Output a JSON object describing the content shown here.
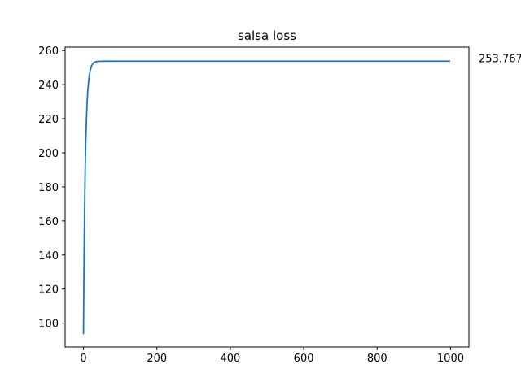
{
  "chart_data": {
    "type": "line",
    "title": "salsa loss",
    "xlabel": "",
    "ylabel": "",
    "xlim": [
      -50,
      1050
    ],
    "ylim": [
      86,
      262
    ],
    "xticks": [
      0,
      200,
      400,
      600,
      800,
      1000
    ],
    "yticks": [
      100,
      120,
      140,
      160,
      180,
      200,
      220,
      240,
      260
    ],
    "grid": false,
    "legend": "none",
    "series": [
      {
        "color": "#1f77b4",
        "x": [
          0,
          1,
          2,
          3,
          4,
          5,
          6,
          8,
          10,
          12,
          15,
          18,
          22,
          26,
          30,
          35,
          40,
          50,
          60,
          80,
          100,
          150,
          200,
          300,
          400,
          500,
          600,
          700,
          800,
          900,
          999
        ],
        "y": [
          93.5,
          122,
          146,
          165,
          180,
          193,
          204,
          219,
          230,
          237,
          244,
          248,
          251,
          252.5,
          253.2,
          253.5,
          253.65,
          253.72,
          253.75,
          253.76,
          253.767,
          253.767,
          253.767,
          253.767,
          253.767,
          253.767,
          253.767,
          253.767,
          253.767,
          253.767,
          253.767
        ]
      }
    ],
    "annotations": [
      {
        "text": "253.767",
        "y": 253.767
      }
    ]
  },
  "colors": {
    "line": "#1f77b4",
    "axes": "#000000",
    "background": "#ffffff"
  }
}
